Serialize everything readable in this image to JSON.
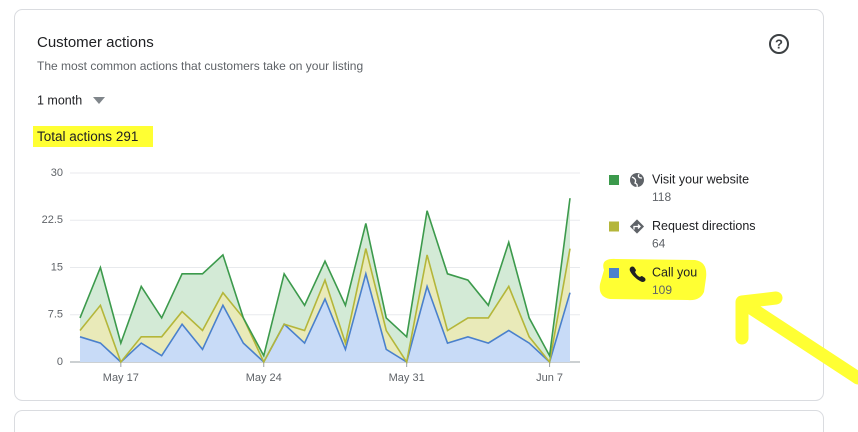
{
  "header": {
    "title": "Customer actions",
    "subtitle": "The most common actions that customers take on your listing",
    "period": "1 month",
    "help_icon": "?"
  },
  "total_label": "Total actions",
  "total": 291,
  "chart_data": {
    "type": "stacked-area",
    "x": [
      "May 15",
      "May 16",
      "May 17",
      "May 18",
      "May 19",
      "May 20",
      "May 21",
      "May 22",
      "May 23",
      "May 24",
      "May 25",
      "May 26",
      "May 27",
      "May 28",
      "May 29",
      "May 30",
      "May 31",
      "Jun 1",
      "Jun 2",
      "Jun 3",
      "Jun 4",
      "Jun 5",
      "Jun 6",
      "Jun 7",
      "Jun 8"
    ],
    "xticks": [
      "May 17",
      "May 24",
      "May 31",
      "Jun 7"
    ],
    "ylim": [
      0,
      30
    ],
    "yticks": [
      0,
      7.5,
      15,
      22.5,
      30
    ],
    "grid": true,
    "series": [
      {
        "name": "Visit your website",
        "total": 118,
        "color": "#3c9a4c",
        "fill": "#d3ead6",
        "values": [
          2,
          6,
          3,
          8,
          3,
          6,
          9,
          6,
          0,
          1,
          8,
          4,
          3,
          6,
          4,
          2,
          4,
          7,
          9,
          6,
          2,
          7,
          3,
          1,
          8
        ]
      },
      {
        "name": "Request directions",
        "total": 64,
        "color": "#b4b63a",
        "fill": "#e9eab9",
        "values": [
          1,
          6,
          0,
          1,
          3,
          2,
          3,
          2,
          4,
          0,
          0,
          2,
          3,
          1,
          4,
          3,
          0,
          5,
          2,
          3,
          4,
          7,
          1,
          0,
          7
        ]
      },
      {
        "name": "Call you",
        "total": 109,
        "color": "#4a80cc",
        "fill": "#c8dbf7",
        "values": [
          4,
          3,
          0,
          3,
          1,
          6,
          2,
          9,
          3,
          0,
          6,
          3,
          10,
          2,
          14,
          2,
          0,
          12,
          3,
          4,
          3,
          5,
          3,
          0,
          11
        ]
      }
    ]
  }
}
